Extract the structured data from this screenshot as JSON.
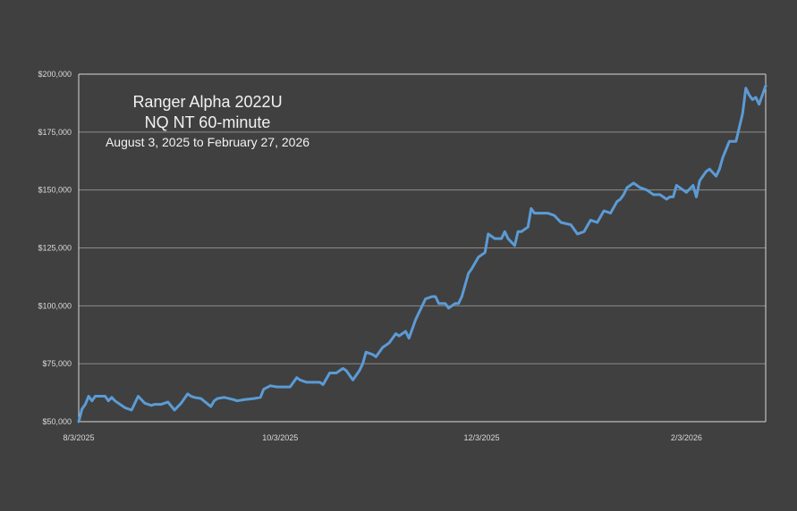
{
  "chart_data": {
    "type": "line",
    "title_lines": [
      "Ranger Alpha 2022U",
      "NQ NT 60-minute",
      "August 3, 2025 to February 27, 2026"
    ],
    "xlabel": "",
    "ylabel": "",
    "x_tick_labels": [
      "8/3/2025",
      "10/3/2025",
      "12/3/2025",
      "2/3/2026"
    ],
    "x_ticks": [
      "2025-08-03",
      "2025-10-03",
      "2025-12-03",
      "2026-02-03"
    ],
    "xlim": [
      "2025-08-03",
      "2026-02-27"
    ],
    "y_tick_labels": [
      "$50,000",
      "$75,000",
      "$100,000",
      "$125,000",
      "$150,000",
      "$175,000",
      "$200,000"
    ],
    "y_ticks": [
      50000,
      75000,
      100000,
      125000,
      150000,
      175000,
      200000
    ],
    "ylim": [
      50000,
      200000
    ],
    "grid": "horizontal",
    "legend": "none",
    "colors": {
      "background": "#404040",
      "line": "#5b9bd5",
      "grid": "#8c8c8c",
      "axis": "#d9d9d9",
      "text": "#f2f2f2"
    },
    "series": [
      {
        "x": [
          "2025-08-03",
          "2025-08-04",
          "2025-08-05",
          "2025-08-06",
          "2025-08-07",
          "2025-08-08",
          "2025-08-09",
          "2025-08-11",
          "2025-08-12",
          "2025-08-13",
          "2025-08-14",
          "2025-08-15",
          "2025-08-17",
          "2025-08-19",
          "2025-08-21",
          "2025-08-23",
          "2025-08-25",
          "2025-08-26",
          "2025-08-28",
          "2025-08-30",
          "2025-09-01",
          "2025-09-03",
          "2025-09-05",
          "2025-09-06",
          "2025-09-07",
          "2025-09-09",
          "2025-09-12",
          "2025-09-13",
          "2025-09-14",
          "2025-09-16",
          "2025-09-19",
          "2025-09-20",
          "2025-09-22",
          "2025-09-25",
          "2025-09-27",
          "2025-09-28",
          "2025-09-30",
          "2025-10-02",
          "2025-10-04",
          "2025-10-06",
          "2025-10-08",
          "2025-10-09",
          "2025-10-11",
          "2025-10-12",
          "2025-10-13",
          "2025-10-15",
          "2025-10-16",
          "2025-10-18",
          "2025-10-20",
          "2025-10-22",
          "2025-10-23",
          "2025-10-25",
          "2025-10-27",
          "2025-10-28",
          "2025-10-29",
          "2025-10-31",
          "2025-11-01",
          "2025-11-03",
          "2025-11-05",
          "2025-11-07",
          "2025-11-08",
          "2025-11-10",
          "2025-11-11",
          "2025-11-13",
          "2025-11-15",
          "2025-11-16",
          "2025-11-18",
          "2025-11-19",
          "2025-11-20",
          "2025-11-22",
          "2025-11-23",
          "2025-11-25",
          "2025-11-26",
          "2025-11-27",
          "2025-11-29",
          "2025-11-30",
          "2025-12-02",
          "2025-12-04",
          "2025-12-05",
          "2025-12-06",
          "2025-12-07",
          "2025-12-09",
          "2025-12-10",
          "2025-12-11",
          "2025-12-13",
          "2025-12-14",
          "2025-12-15",
          "2025-12-17",
          "2025-12-18",
          "2025-12-19",
          "2025-12-21",
          "2025-12-23",
          "2025-12-25",
          "2025-12-27",
          "2025-12-30",
          "2026-01-01",
          "2026-01-03",
          "2026-01-05",
          "2026-01-07",
          "2026-01-09",
          "2026-01-11",
          "2026-01-13",
          "2026-01-14",
          "2026-01-15",
          "2026-01-16",
          "2026-01-17",
          "2026-01-18",
          "2026-01-20",
          "2026-01-22",
          "2026-01-24",
          "2026-01-26",
          "2026-01-28",
          "2026-01-29",
          "2026-01-30",
          "2026-01-31",
          "2026-02-02",
          "2026-02-03",
          "2026-02-05",
          "2026-02-06",
          "2026-02-07",
          "2026-02-08",
          "2026-02-09",
          "2026-02-10",
          "2026-02-12",
          "2026-02-13",
          "2026-02-14",
          "2026-02-16",
          "2026-02-18",
          "2026-02-20",
          "2026-02-21",
          "2026-02-22",
          "2026-02-23",
          "2026-02-24",
          "2026-02-25",
          "2026-02-27"
        ],
        "values": [
          50000,
          55500,
          57500,
          61000,
          59000,
          61000,
          61000,
          61000,
          59000,
          60500,
          59000,
          58000,
          56000,
          55000,
          61000,
          58000,
          57000,
          57500,
          57500,
          58500,
          55000,
          58000,
          62000,
          61000,
          60500,
          60000,
          56500,
          59000,
          60000,
          60500,
          59500,
          59000,
          59500,
          60000,
          60500,
          64000,
          65500,
          65000,
          65000,
          65000,
          69000,
          68000,
          67000,
          67000,
          67000,
          67000,
          66000,
          71000,
          71000,
          73000,
          72000,
          68000,
          72000,
          75000,
          80000,
          79000,
          78000,
          82000,
          84000,
          88000,
          87000,
          89000,
          86000,
          94000,
          100000,
          103000,
          104000,
          104000,
          101000,
          101000,
          99000,
          101000,
          101000,
          104000,
          114000,
          116000,
          121000,
          123000,
          131000,
          130000,
          129000,
          129000,
          132000,
          129000,
          126000,
          132000,
          132000,
          134000,
          142000,
          140000,
          140000,
          140000,
          139000,
          136000,
          135000,
          131000,
          132000,
          137000,
          136000,
          141000,
          140000,
          145000,
          146000,
          148000,
          151000,
          152000,
          153000,
          151000,
          150000,
          148000,
          148000,
          146000,
          147000,
          147000,
          152000,
          150000,
          149000,
          152000,
          147000,
          154000,
          156000,
          158000,
          159000,
          156000,
          159000,
          164000,
          171000,
          171000,
          183000,
          194000,
          191000,
          189000,
          190000,
          187000,
          195000
        ]
      }
    ]
  }
}
